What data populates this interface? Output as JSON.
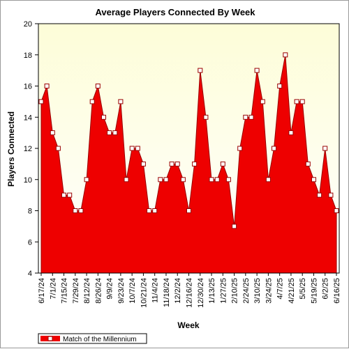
{
  "chart_data": {
    "type": "area",
    "title": "Average Players Connected By Week",
    "xlabel": "Week",
    "ylabel": "Players Connected",
    "ylim": [
      4,
      20
    ],
    "yticks": [
      4,
      6,
      8,
      10,
      12,
      14,
      16,
      18,
      20
    ],
    "grid": false,
    "legend_position": "bottom-left",
    "colors": {
      "fill": "#ee0000",
      "line": "#990000",
      "plot_bg_top": "#fdfdd8",
      "plot_bg_bottom": "#ffffff",
      "marker_fill": "#ffffff"
    },
    "x_tick_labels": [
      "6/17/24",
      "7/1/24",
      "7/15/24",
      "7/29/24",
      "8/12/24",
      "8/26/24",
      "9/9/24",
      "9/23/24",
      "10/7/24",
      "10/21/24",
      "11/4/24",
      "11/18/24",
      "12/2/24",
      "12/16/24",
      "12/30/24",
      "1/13/25",
      "1/27/25",
      "2/10/25",
      "2/24/25",
      "3/10/25",
      "3/24/25",
      "4/7/25",
      "4/21/25",
      "5/5/25",
      "5/19/25",
      "6/2/25",
      "6/16/25"
    ],
    "series": [
      {
        "name": "Match of the Millennium",
        "x": [
          "6/17/24",
          "6/24/24",
          "7/1/24",
          "7/8/24",
          "7/15/24",
          "7/22/24",
          "7/29/24",
          "8/5/24",
          "8/12/24",
          "8/19/24",
          "8/26/24",
          "9/2/24",
          "9/9/24",
          "9/16/24",
          "9/23/24",
          "9/30/24",
          "10/7/24",
          "10/14/24",
          "10/21/24",
          "10/28/24",
          "11/4/24",
          "11/11/24",
          "11/18/24",
          "11/25/24",
          "12/2/24",
          "12/9/24",
          "12/16/24",
          "12/23/24",
          "12/30/24",
          "1/6/25",
          "1/13/25",
          "1/20/25",
          "1/27/25",
          "2/3/25",
          "2/10/25",
          "2/17/25",
          "2/24/25",
          "3/3/25",
          "3/10/25",
          "3/17/25",
          "3/24/25",
          "3/31/25",
          "4/7/25",
          "4/14/25",
          "4/21/25",
          "4/28/25",
          "5/5/25",
          "5/12/25",
          "5/19/25",
          "5/26/25",
          "6/2/25",
          "6/9/25",
          "6/16/25"
        ],
        "values": [
          15,
          16,
          13,
          12,
          9,
          9,
          8,
          8,
          10,
          15,
          16,
          14,
          13,
          13,
          15,
          10,
          12,
          12,
          11,
          8,
          8,
          10,
          10,
          11,
          11,
          10,
          8,
          11,
          17,
          14,
          10,
          10,
          11,
          10,
          7,
          12,
          14,
          14,
          17,
          15,
          10,
          12,
          16,
          18,
          13,
          15,
          15,
          11,
          10,
          9,
          12,
          9,
          8
        ]
      }
    ]
  }
}
